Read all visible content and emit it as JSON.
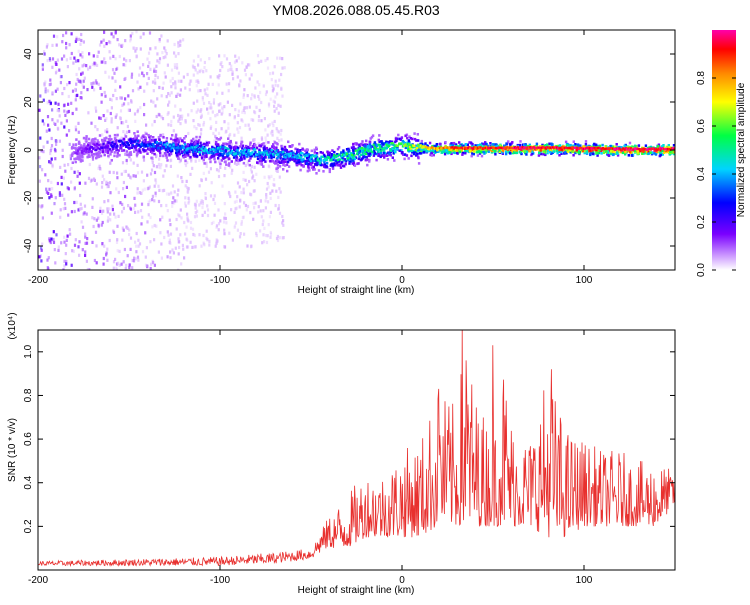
{
  "title": "YM08.2026.088.05.45.R03",
  "colors": {
    "background": "#ffffff",
    "snr_line": "#e8302e",
    "axes": "#000000"
  },
  "chart_data": [
    {
      "type": "heatmap",
      "name": "spectrogram",
      "title": "YM08.2026.088.05.45.R03",
      "xlabel": "Height of straight line (km)",
      "ylabel": "Frequency (Hz)",
      "xlim": [
        -200,
        150
      ],
      "ylim": [
        -50,
        50
      ],
      "xticks": [
        -200,
        -100,
        0,
        100
      ],
      "xtick_labels": [
        "-200",
        "-100",
        "0",
        "100"
      ],
      "yticks": [
        -40,
        -20,
        0,
        20,
        40
      ],
      "ytick_labels": [
        "-40",
        "-20",
        "0",
        "20",
        "40"
      ],
      "colorbar": {
        "label": "Normalized spectral amplitude",
        "range": [
          0.0,
          1.0
        ],
        "ticks": [
          0.0,
          0.2,
          0.4,
          0.6,
          0.8
        ],
        "tick_labels": [
          "0.0",
          "0.2",
          "0.4",
          "0.6",
          "0.8"
        ],
        "colormap": [
          "#ffffff",
          "#cc99ff",
          "#7a00ff",
          "#0000ff",
          "#00d4ff",
          "#00ff44",
          "#ffff00",
          "#ff8800",
          "#ff0000",
          "#ff00aa"
        ]
      },
      "description_bands": [
        {
          "x_from": -200,
          "x_to": -120,
          "freq_halfwidth": 50,
          "amplitude": 0.15
        },
        {
          "x_from": -120,
          "x_to": -65,
          "freq_halfwidth": 40,
          "amplitude": 0.05
        },
        {
          "x_from": -180,
          "x_to": 150,
          "freq_halfwidth": 6,
          "amplitude": 0.3
        }
      ],
      "ridge": {
        "x": [
          -180,
          -150,
          -120,
          -100,
          -80,
          -60,
          -45,
          -30,
          -15,
          0,
          15,
          30,
          60,
          90,
          120,
          150
        ],
        "freq": [
          0,
          3,
          1,
          0,
          -1,
          -2,
          -4,
          -2,
          1,
          2,
          1,
          1,
          1,
          1,
          0.5,
          0.5
        ],
        "amplitude": [
          0.2,
          0.35,
          0.45,
          0.45,
          0.45,
          0.45,
          0.5,
          0.55,
          0.55,
          0.6,
          0.75,
          0.9,
          0.95,
          0.95,
          0.98,
          1.0
        ]
      }
    },
    {
      "type": "line",
      "name": "snr",
      "xlabel": "Height of straight line (km)",
      "ylabel": "SNR (10 * v/v)",
      "y_multiplier": "(x10⁴)",
      "xlim": [
        -200,
        150
      ],
      "ylim": [
        0,
        1.1
      ],
      "xticks": [
        -200,
        -100,
        0,
        100
      ],
      "xtick_labels": [
        "-200",
        "-100",
        "0",
        "100"
      ],
      "yticks": [
        0.2,
        0.4,
        0.6,
        0.8,
        1.0
      ],
      "ytick_labels": [
        "0.2",
        "0.4",
        "0.6",
        "0.8",
        "1.0"
      ],
      "series": [
        {
          "name": "SNR",
          "envelope_x": [
            -200,
            -150,
            -100,
            -70,
            -50,
            -40,
            -30,
            -20,
            -10,
            0,
            10,
            20,
            30,
            35,
            40,
            50,
            55,
            60,
            70,
            80,
            90,
            100,
            110,
            120,
            130,
            140,
            150
          ],
          "envelope_max": [
            0.04,
            0.05,
            0.06,
            0.08,
            0.1,
            0.25,
            0.35,
            0.45,
            0.45,
            0.55,
            0.6,
            0.83,
            0.75,
            1.12,
            0.8,
            0.65,
            1.03,
            0.7,
            0.6,
            0.92,
            0.65,
            0.6,
            0.55,
            0.55,
            0.5,
            0.5,
            0.45
          ],
          "envelope_min": [
            0.02,
            0.02,
            0.02,
            0.03,
            0.05,
            0.1,
            0.1,
            0.15,
            0.15,
            0.15,
            0.15,
            0.2,
            0.2,
            0.2,
            0.2,
            0.2,
            0.2,
            0.2,
            0.2,
            0.15,
            0.15,
            0.2,
            0.2,
            0.2,
            0.2,
            0.2,
            0.3
          ]
        }
      ],
      "peaks": [
        {
          "x": 33,
          "y": 1.12
        },
        {
          "x": 50,
          "y": 1.03
        },
        {
          "x": 82,
          "y": 0.92
        },
        {
          "x": 20,
          "y": 0.83
        }
      ]
    }
  ]
}
